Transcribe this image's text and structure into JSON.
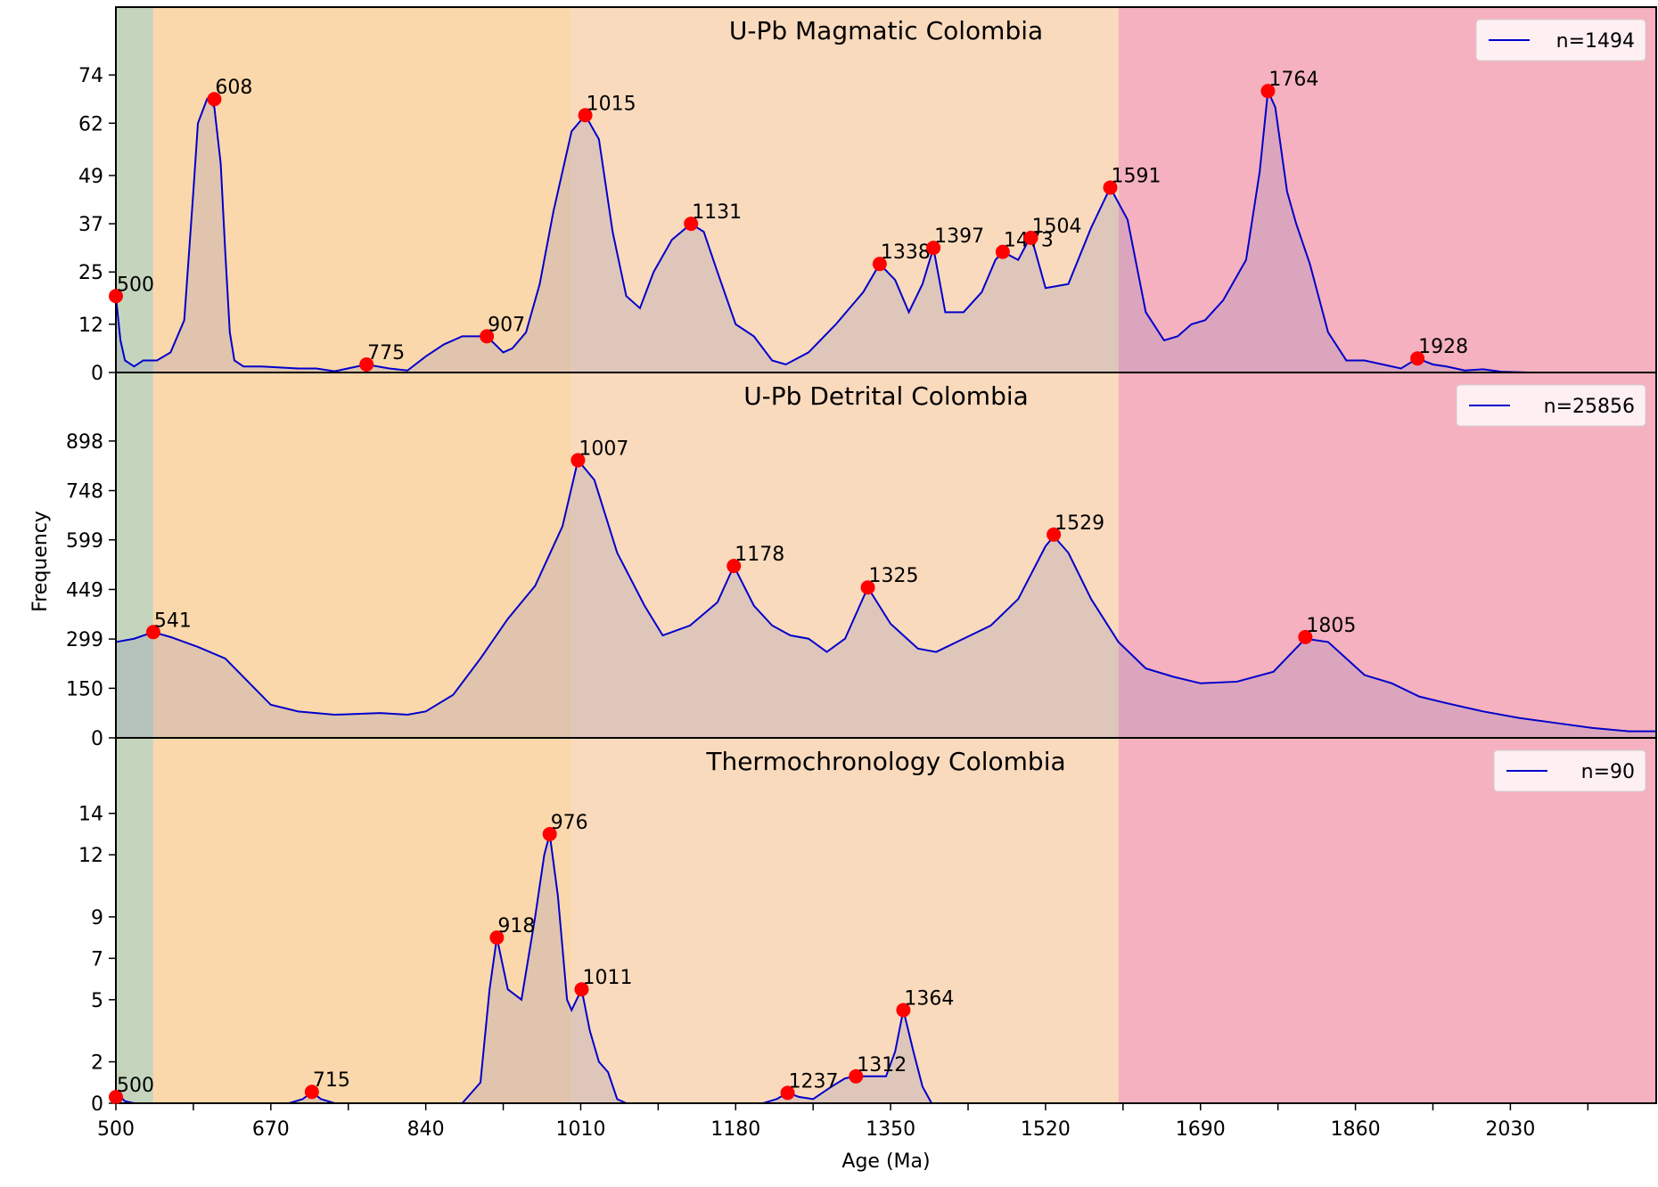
{
  "chart_data": {
    "type": "area",
    "xlabel": "Age (Ma)",
    "ylabel": "Frequency",
    "xlim": [
      500,
      2190
    ],
    "x_ticks": [
      500,
      670,
      840,
      1010,
      1180,
      1350,
      1520,
      1690,
      1860,
      2030
    ],
    "grid": false,
    "legend_placement": "top-right",
    "colors": {
      "line": "#0000cc",
      "peak": "#ff0000",
      "background": "#ffffff"
    },
    "bands": [
      {
        "from": 500,
        "to": 541,
        "color": "#c5d5bd"
      },
      {
        "from": 541,
        "to": 1000,
        "color": "#fbd8ab"
      },
      {
        "from": 1000,
        "to": 1600,
        "color": "#fadabd"
      },
      {
        "from": 1600,
        "to": 2190,
        "color": "#f5b1bf"
      }
    ],
    "panels": [
      {
        "title": "U-Pb Magmatic Colombia",
        "legend": "n=1494",
        "ylim": [
          0,
          86
        ],
        "y_ticks": [
          0,
          12,
          25,
          37,
          49,
          62,
          74
        ],
        "x": [
          500,
          505,
          510,
          520,
          530,
          545,
          560,
          575,
          585,
          590,
          600,
          608,
          615,
          620,
          625,
          630,
          640,
          660,
          700,
          720,
          740,
          775,
          800,
          820,
          840,
          860,
          880,
          907,
          925,
          935,
          950,
          965,
          980,
          1000,
          1015,
          1030,
          1045,
          1060,
          1075,
          1090,
          1110,
          1131,
          1145,
          1160,
          1180,
          1200,
          1220,
          1235,
          1260,
          1290,
          1320,
          1338,
          1355,
          1370,
          1385,
          1397,
          1410,
          1430,
          1450,
          1465,
          1473,
          1490,
          1504,
          1520,
          1545,
          1570,
          1591,
          1610,
          1630,
          1650,
          1665,
          1680,
          1695,
          1715,
          1740,
          1755,
          1764,
          1772,
          1785,
          1795,
          1810,
          1830,
          1850,
          1870,
          1890,
          1910,
          1928,
          1945,
          1960,
          1980,
          2000,
          2020,
          2050,
          2100,
          2150,
          2190
        ],
        "y": [
          19,
          8,
          3,
          1.5,
          3,
          3,
          5,
          13,
          45,
          62,
          68,
          66,
          52,
          30,
          10,
          3,
          1.5,
          1.5,
          1,
          1,
          0.3,
          2,
          1,
          0.5,
          4,
          7,
          9,
          9,
          5,
          6,
          10,
          22,
          40,
          60,
          64,
          58,
          35,
          19,
          16,
          25,
          33,
          37,
          35,
          25,
          12,
          9,
          3,
          2,
          5,
          12,
          20,
          27,
          23,
          15,
          22,
          31,
          15,
          15,
          20,
          28,
          30,
          28,
          34,
          21,
          22,
          36,
          46,
          38,
          15,
          8,
          9,
          12,
          13,
          18,
          28,
          50,
          70,
          66,
          45,
          37,
          27,
          10,
          3,
          3,
          2,
          1,
          3.5,
          2,
          1.5,
          0.5,
          0.8,
          0.2,
          0,
          0,
          0,
          0
        ]
      },
      {
        "title": "U-Pb Detrital Colombia",
        "legend": "n=25856",
        "ylim": [
          0,
          1046
        ],
        "y_ticks": [
          0,
          150,
          299,
          449,
          599,
          748,
          898
        ],
        "x": [
          500,
          520,
          541,
          560,
          590,
          620,
          645,
          670,
          700,
          740,
          790,
          820,
          840,
          870,
          900,
          930,
          960,
          990,
          1007,
          1025,
          1050,
          1080,
          1100,
          1130,
          1160,
          1178,
          1200,
          1220,
          1240,
          1260,
          1280,
          1300,
          1325,
          1350,
          1380,
          1400,
          1430,
          1460,
          1490,
          1520,
          1529,
          1545,
          1570,
          1600,
          1630,
          1660,
          1690,
          1730,
          1770,
          1805,
          1830,
          1870,
          1900,
          1930,
          1960,
          2000,
          2040,
          2080,
          2120,
          2160,
          2190
        ],
        "y": [
          290,
          300,
          320,
          305,
          275,
          240,
          170,
          100,
          80,
          70,
          75,
          70,
          80,
          130,
          240,
          360,
          460,
          640,
          840,
          780,
          560,
          400,
          310,
          340,
          410,
          520,
          400,
          340,
          310,
          300,
          260,
          300,
          455,
          345,
          270,
          260,
          300,
          340,
          420,
          580,
          610,
          560,
          420,
          290,
          210,
          185,
          165,
          170,
          200,
          300,
          290,
          190,
          165,
          125,
          105,
          80,
          60,
          45,
          30,
          20,
          20
        ]
      },
      {
        "title": "Thermochronology Colombia",
        "legend": "n=90",
        "ylim": [
          0,
          16.7
        ],
        "y_ticks": [
          0,
          2,
          5,
          7,
          9,
          12,
          14
        ],
        "x": [
          500,
          505,
          510,
          520,
          690,
          705,
          715,
          725,
          740,
          880,
          900,
          910,
          918,
          930,
          945,
          960,
          970,
          976,
          985,
          995,
          1000,
          1011,
          1020,
          1030,
          1040,
          1050,
          1060,
          1210,
          1225,
          1237,
          1250,
          1265,
          1285,
          1300,
          1312,
          1330,
          1345,
          1355,
          1364,
          1375,
          1385,
          1395,
          2190
        ],
        "y": [
          0.3,
          0.3,
          0.1,
          0,
          0,
          0.2,
          0.55,
          0.2,
          0,
          0,
          1,
          5.5,
          8,
          5.5,
          5,
          9,
          12,
          13,
          10,
          5,
          4.5,
          5.5,
          3.5,
          2,
          1.5,
          0.2,
          0,
          0,
          0.2,
          0.5,
          0.3,
          0.2,
          0.8,
          1.2,
          1.3,
          1.3,
          1.3,
          2.5,
          4.5,
          2.5,
          0.8,
          0,
          0
        ]
      }
    ],
    "peaks": [
      {
        "panel": 0,
        "x": 500,
        "y": 19,
        "label": "500"
      },
      {
        "panel": 0,
        "x": 608,
        "y": 68,
        "label": "608"
      },
      {
        "panel": 0,
        "x": 775,
        "y": 2,
        "label": "775"
      },
      {
        "panel": 0,
        "x": 907,
        "y": 9,
        "label": "907"
      },
      {
        "panel": 0,
        "x": 1015,
        "y": 64,
        "label": "1015"
      },
      {
        "panel": 0,
        "x": 1131,
        "y": 37,
        "label": "1131"
      },
      {
        "panel": 0,
        "x": 1338,
        "y": 27,
        "label": "1338"
      },
      {
        "panel": 0,
        "x": 1397,
        "y": 31,
        "label": "1397"
      },
      {
        "panel": 0,
        "x": 1473,
        "y": 30,
        "label": "1473"
      },
      {
        "panel": 0,
        "x": 1504,
        "y": 33.5,
        "label": "1504"
      },
      {
        "panel": 0,
        "x": 1591,
        "y": 46,
        "label": "1591"
      },
      {
        "panel": 0,
        "x": 1764,
        "y": 70,
        "label": "1764"
      },
      {
        "panel": 0,
        "x": 1928,
        "y": 3.5,
        "label": "1928"
      },
      {
        "panel": 1,
        "x": 541,
        "y": 320,
        "label": "541"
      },
      {
        "panel": 1,
        "x": 1007,
        "y": 840,
        "label": "1007"
      },
      {
        "panel": 1,
        "x": 1178,
        "y": 520,
        "label": "1178"
      },
      {
        "panel": 1,
        "x": 1325,
        "y": 455,
        "label": "1325"
      },
      {
        "panel": 1,
        "x": 1529,
        "y": 615,
        "label": "1529"
      },
      {
        "panel": 1,
        "x": 1805,
        "y": 305,
        "label": "1805"
      },
      {
        "panel": 2,
        "x": 500,
        "y": 0.3,
        "label": "500"
      },
      {
        "panel": 2,
        "x": 715,
        "y": 0.55,
        "label": "715"
      },
      {
        "panel": 2,
        "x": 918,
        "y": 8,
        "label": "918"
      },
      {
        "panel": 2,
        "x": 976,
        "y": 13,
        "label": "976"
      },
      {
        "panel": 2,
        "x": 1011,
        "y": 5.5,
        "label": "1011"
      },
      {
        "panel": 2,
        "x": 1237,
        "y": 0.5,
        "label": "1237"
      },
      {
        "panel": 2,
        "x": 1312,
        "y": 1.3,
        "label": "1312"
      },
      {
        "panel": 2,
        "x": 1364,
        "y": 4.5,
        "label": "1364"
      }
    ]
  }
}
